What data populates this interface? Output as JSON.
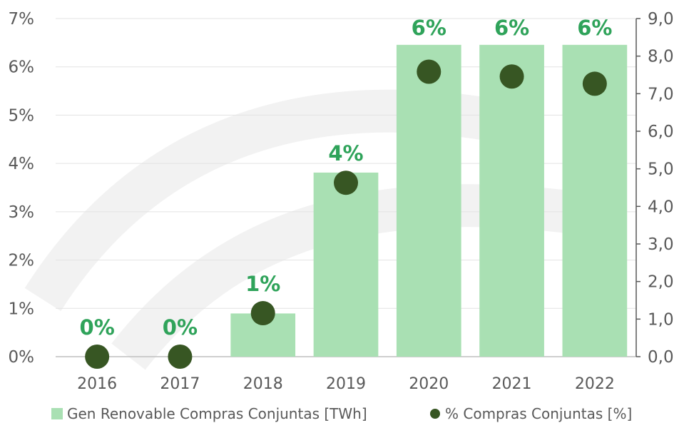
{
  "chart_data": {
    "type": "bar",
    "categories": [
      "2016",
      "2017",
      "2018",
      "2019",
      "2020",
      "2021",
      "2022"
    ],
    "series": [
      {
        "name": "Gen Renovable Compras Conjuntas [TWh]",
        "type": "bar",
        "axis": "right",
        "values": [
          0.0,
          0.0,
          1.15,
          4.9,
          8.3,
          8.3,
          8.3
        ],
        "color": "#a9e0b3"
      },
      {
        "name": "% Compras Conjuntas [%]",
        "type": "scatter",
        "axis": "left",
        "values": [
          0.0,
          0.0,
          0.9,
          3.6,
          5.9,
          5.8,
          5.65
        ],
        "labels": [
          "0%",
          "0%",
          "1%",
          "4%",
          "6%",
          "6%",
          "6%"
        ],
        "color": "#375623"
      }
    ],
    "y_left": {
      "ylim": [
        0,
        7
      ],
      "ticks": [
        "0%",
        "1%",
        "2%",
        "3%",
        "4%",
        "5%",
        "6%",
        "7%"
      ]
    },
    "y_right": {
      "ylim": [
        0,
        9
      ],
      "ticks": [
        "0,0",
        "1,0",
        "2,0",
        "3,0",
        "4,0",
        "5,0",
        "6,0",
        "7,0",
        "8,0",
        "9,0"
      ]
    },
    "grid": true,
    "legend": "bottom",
    "label_color": "#2fa35a"
  }
}
